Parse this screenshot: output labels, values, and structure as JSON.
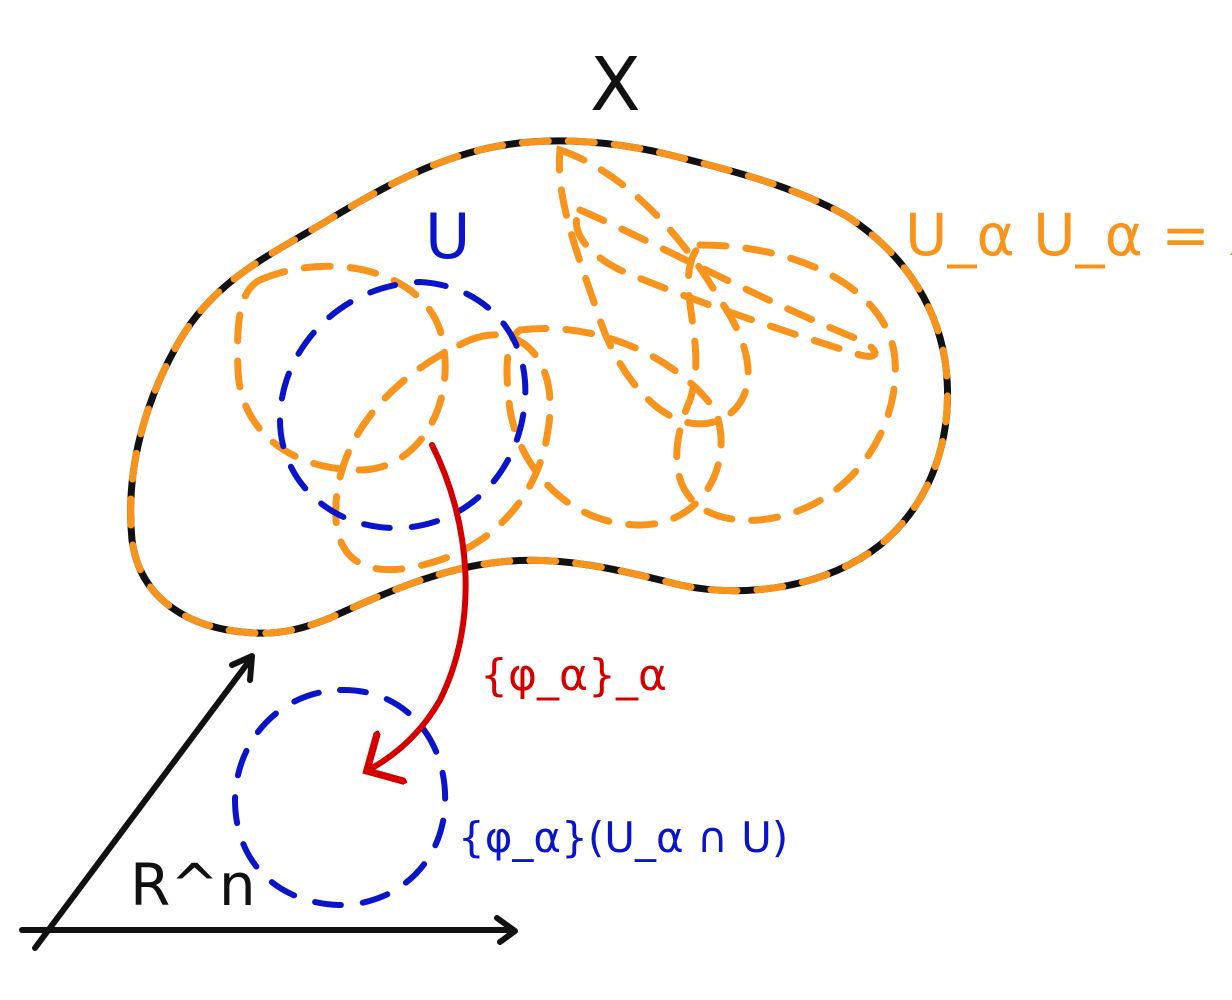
{
  "colors": {
    "manifold_outline": "#111111",
    "cover_sets": "#f7941d",
    "chart_domain": "#0a14c8",
    "chart_map": "#d40000",
    "axes": "#111111"
  },
  "labels": {
    "manifold": "X",
    "cover": "U_α U_α = X",
    "domain": "U",
    "map": "{φ_α}_α",
    "image": "{φ_α}(U_α ∩ U)",
    "space": "R^n"
  }
}
